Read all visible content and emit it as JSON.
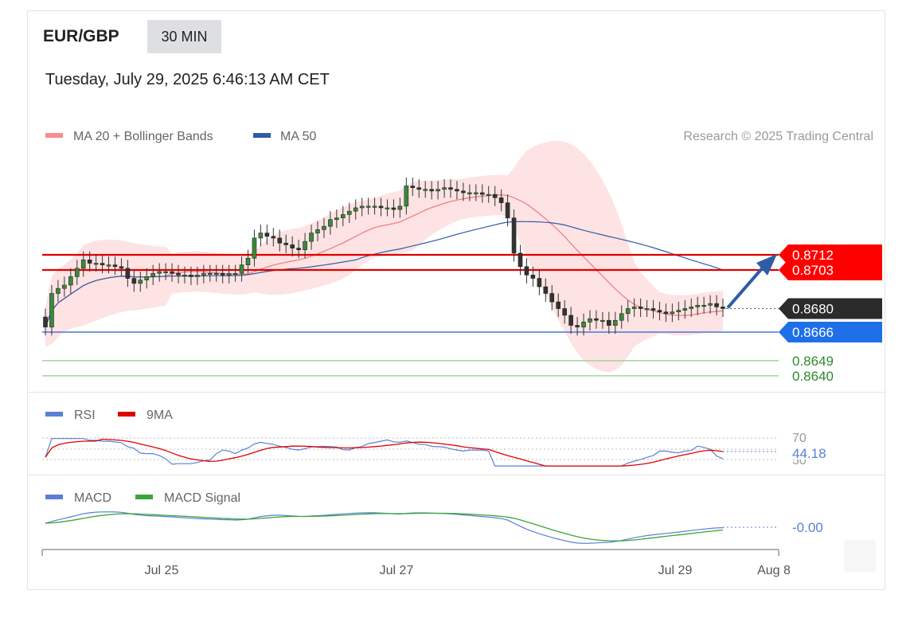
{
  "header": {
    "symbol": "EUR/GBP",
    "timeframe": "30 MIN",
    "datetime": "Tuesday, July 29, 2025 6:46:13 AM CET"
  },
  "legend": {
    "ma20": {
      "label": "MA 20 + Bollinger Bands",
      "color": "#f08080"
    },
    "ma50": {
      "label": "MA 50",
      "color": "#2e5da8"
    },
    "credit": "Research © 2025 Trading Central"
  },
  "chart_data": {
    "type": "candlestick",
    "y_range": [
      0.8632,
      0.8765
    ],
    "x_ticks": [
      "Jul 25",
      "Jul 27",
      "Jul 29",
      "Aug 8"
    ],
    "price_levels": [
      {
        "value": 0.8712,
        "label": "0.8712",
        "style": "resistance-red"
      },
      {
        "value": 0.8703,
        "label": "0.8703",
        "style": "resistance-red"
      },
      {
        "value": 0.868,
        "label": "0.8680",
        "style": "current"
      },
      {
        "value": 0.8666,
        "label": "0.8666",
        "style": "pivot-blue"
      },
      {
        "value": 0.8649,
        "label": "0.8649",
        "style": "support-green"
      },
      {
        "value": 0.864,
        "label": "0.8640",
        "style": "support-green"
      }
    ],
    "closes": [
      0.8669,
      0.8689,
      0.8692,
      0.8694,
      0.8699,
      0.8704,
      0.8709,
      0.8707,
      0.8707,
      0.8706,
      0.8706,
      0.8705,
      0.8704,
      0.8698,
      0.8695,
      0.8697,
      0.8699,
      0.8701,
      0.8702,
      0.8702,
      0.8701,
      0.87,
      0.87,
      0.8699,
      0.87,
      0.8701,
      0.8701,
      0.8701,
      0.87,
      0.8701,
      0.8701,
      0.8706,
      0.871,
      0.8722,
      0.8725,
      0.8723,
      0.8722,
      0.8719,
      0.8718,
      0.8716,
      0.8715,
      0.872,
      0.8725,
      0.8727,
      0.8729,
      0.8733,
      0.8734,
      0.8736,
      0.8738,
      0.874,
      0.8741,
      0.8741,
      0.8741,
      0.874,
      0.874,
      0.8739,
      0.8741,
      0.8753,
      0.8752,
      0.8751,
      0.8751,
      0.875,
      0.8751,
      0.8752,
      0.8751,
      0.875,
      0.8749,
      0.8749,
      0.8749,
      0.8748,
      0.8748,
      0.8746,
      0.8743,
      0.8734,
      0.8713,
      0.8705,
      0.87,
      0.8698,
      0.8693,
      0.8689,
      0.8684,
      0.868,
      0.8676,
      0.867,
      0.8669,
      0.8672,
      0.8674,
      0.8673,
      0.8673,
      0.867,
      0.8673,
      0.8677,
      0.868,
      0.8681,
      0.868,
      0.868,
      0.8679,
      0.8678,
      0.8677,
      0.8678,
      0.8679,
      0.868,
      0.8681,
      0.8682,
      0.8682,
      0.8683,
      0.8681,
      0.868
    ],
    "ma50_value_at_end": 0.8689,
    "forecast": {
      "from": 0.868,
      "to": 0.8712
    },
    "rsi": {
      "label": "RSI",
      "ma_label": "9MA",
      "levels": [
        70,
        50
      ],
      "value": "44.18",
      "color": "#5b7fd6",
      "ma_color": "#e00000"
    },
    "macd": {
      "label": "MACD",
      "signal_label": "MACD Signal",
      "value": "-0.00",
      "color": "#5b7fd6",
      "signal_color": "#3aa63a"
    }
  },
  "panel_labels": {
    "rsi_70": "70",
    "rsi_50": "50"
  }
}
